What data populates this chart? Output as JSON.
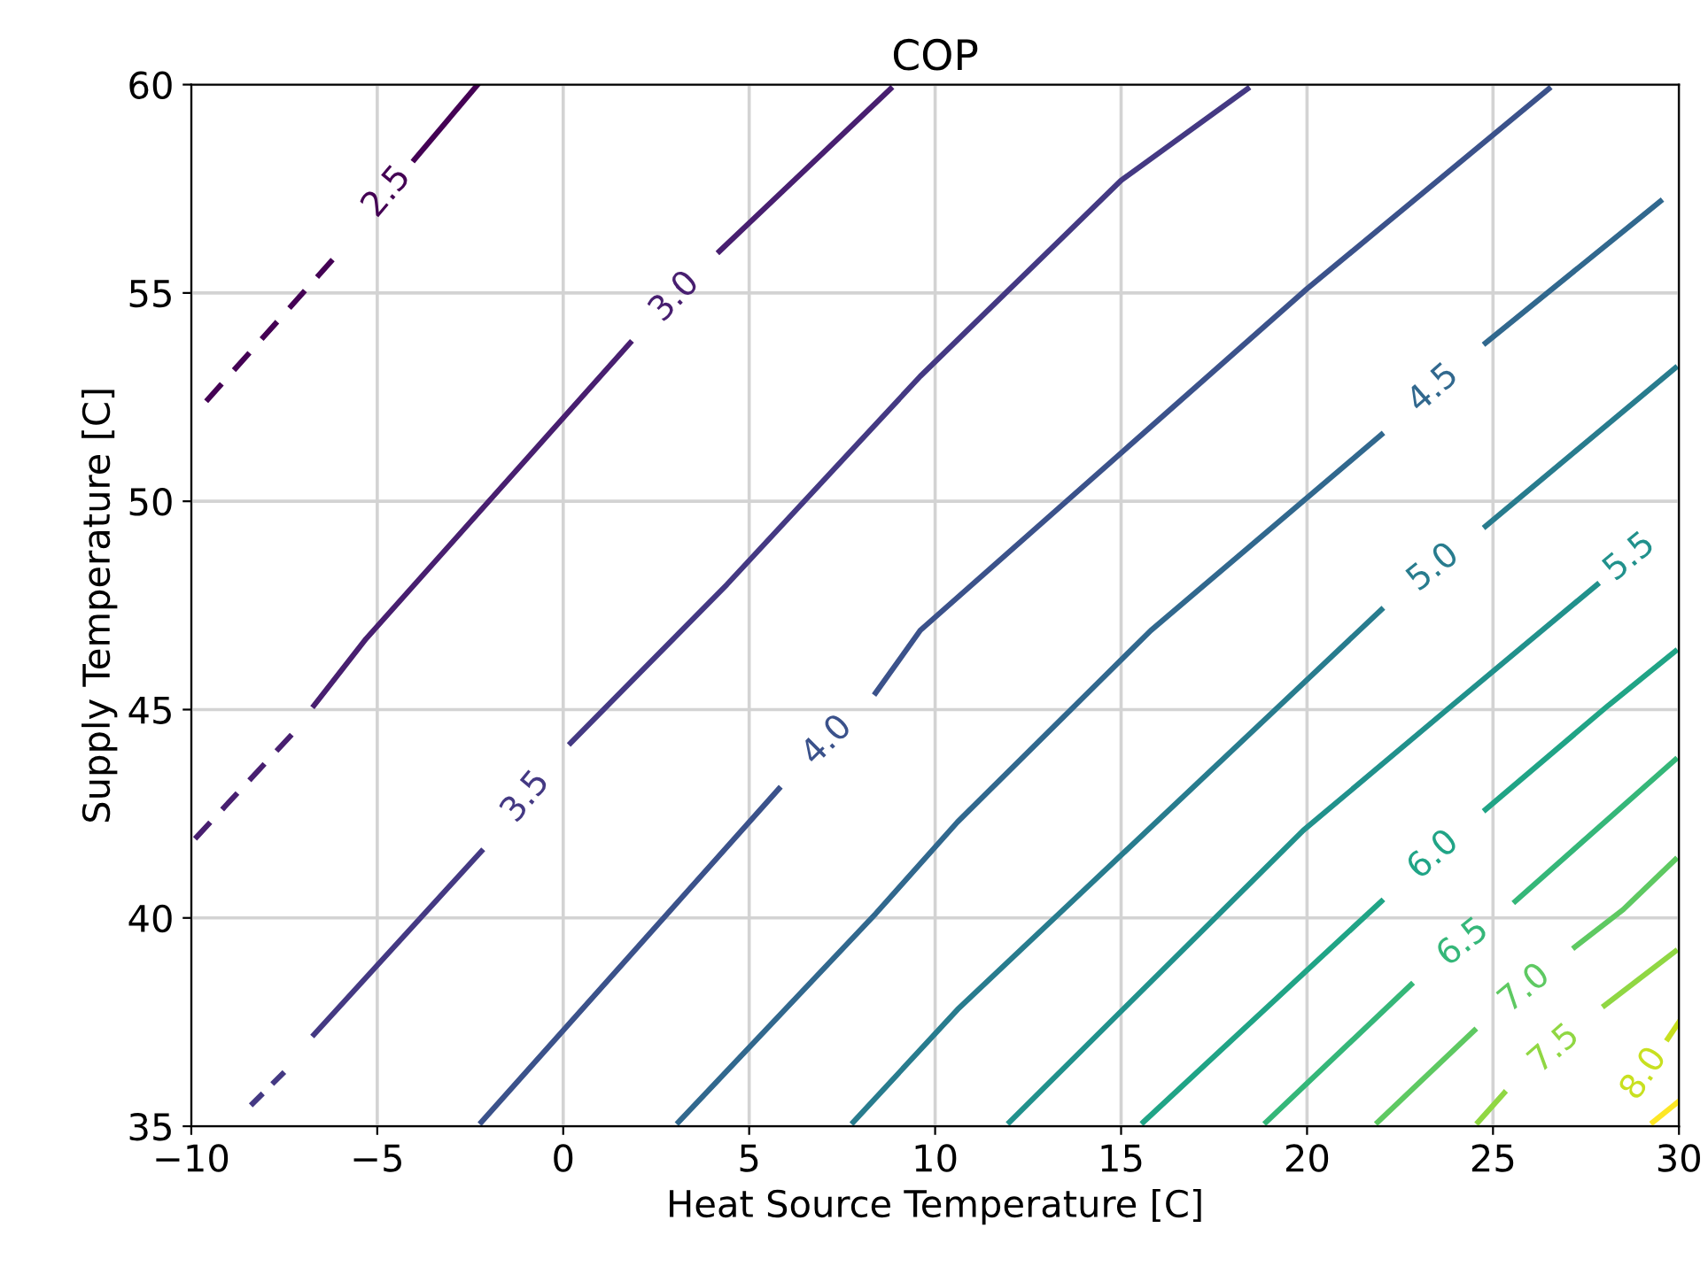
{
  "chart_data": {
    "type": "line",
    "title": "COP",
    "xlabel": "Heat Source Temperature [C]",
    "ylabel": "Supply Temperature [C]",
    "xlim": [
      -10,
      30
    ],
    "ylim": [
      35,
      60
    ],
    "xticks": [
      -10,
      -5,
      0,
      5,
      10,
      15,
      20,
      25,
      30
    ],
    "yticks": [
      35,
      40,
      45,
      50,
      55,
      60
    ],
    "grid": true,
    "series": [
      {
        "color": "#440154",
        "line_style": "dashed",
        "x": [
          -9.6,
          -6.2
        ],
        "values": [
          52.4,
          55.8
        ]
      },
      {
        "name": "2.5",
        "color": "#440154",
        "x": [
          -4.0,
          -2.3
        ],
        "values": [
          58.2,
          60.0
        ]
      },
      {
        "color": "#481f70",
        "line_style": "dashed",
        "x": [
          -9.9,
          -7.3
        ],
        "values": [
          41.9,
          44.4
        ]
      },
      {
        "name": "3.0",
        "color": "#481f70",
        "x": [
          -6.7,
          -5.3,
          1.8,
          null,
          4.2,
          8.8
        ],
        "values": [
          45.1,
          46.7,
          53.8,
          null,
          56.0,
          59.9
        ]
      },
      {
        "color": "#443983",
        "line_style": "dashed",
        "x": [
          -8.4,
          -7.5
        ],
        "values": [
          35.5,
          36.3
        ]
      },
      {
        "name": "3.5",
        "color": "#443983",
        "x": [
          -6.7,
          -2.2,
          null,
          0.2,
          4.4,
          9.6,
          15.0,
          18.4
        ],
        "values": [
          37.2,
          41.6,
          null,
          44.2,
          48.0,
          53.0,
          57.7,
          59.9
        ]
      },
      {
        "name": "4.0",
        "color": "#3b528b",
        "x": [
          -2.2,
          5.8,
          null,
          8.4,
          9.6,
          20.0,
          26.5
        ],
        "values": [
          35.1,
          43.1,
          null,
          45.4,
          46.9,
          55.1,
          59.9
        ]
      },
      {
        "name": "4.5",
        "color": "#31688e",
        "x": [
          3.1,
          8.4,
          10.6,
          15.8,
          22.0,
          null,
          24.8,
          29.5
        ],
        "values": [
          35.1,
          40.1,
          42.3,
          46.9,
          51.6,
          null,
          53.8,
          57.2
        ]
      },
      {
        "name": "5.0",
        "color": "#287c8e",
        "x": [
          7.8,
          10.6,
          22.0,
          null,
          24.8,
          29.9
        ],
        "values": [
          35.1,
          37.8,
          47.4,
          null,
          49.4,
          53.2
        ]
      },
      {
        "name": "5.5",
        "color": "#21918c",
        "x": [
          12.0,
          19.9,
          23.9,
          27.8
        ],
        "values": [
          35.1,
          42.1,
          45.1,
          48.0
        ]
      },
      {
        "name": "6.0",
        "color": "#20a486",
        "x": [
          15.6,
          22.0,
          null,
          24.8,
          28.1,
          29.9
        ],
        "values": [
          35.1,
          40.4,
          null,
          42.6,
          45.1,
          46.4
        ]
      },
      {
        "name": "6.5",
        "color": "#35b779",
        "x": [
          18.9,
          22.8,
          null,
          25.6,
          29.9
        ],
        "values": [
          35.1,
          38.4,
          null,
          40.4,
          43.8
        ]
      },
      {
        "name": "7.0",
        "color": "#5ec962",
        "x": [
          21.9,
          24.5,
          null,
          27.2,
          28.5,
          29.9
        ],
        "values": [
          35.1,
          37.3,
          null,
          39.3,
          40.2,
          41.4
        ]
      },
      {
        "name": "7.5",
        "color": "#90d743",
        "x": [
          24.6,
          25.3,
          null,
          28.0,
          29.9
        ],
        "values": [
          35.1,
          35.8,
          null,
          37.9,
          39.2
        ]
      },
      {
        "name": "8.0",
        "color": "#c8e020",
        "x": [
          29.7,
          30.0
        ],
        "values": [
          37.1,
          37.5
        ]
      },
      {
        "color": "#fde725",
        "x": [
          29.3,
          30.0
        ],
        "values": [
          35.1,
          35.6
        ]
      }
    ]
  }
}
